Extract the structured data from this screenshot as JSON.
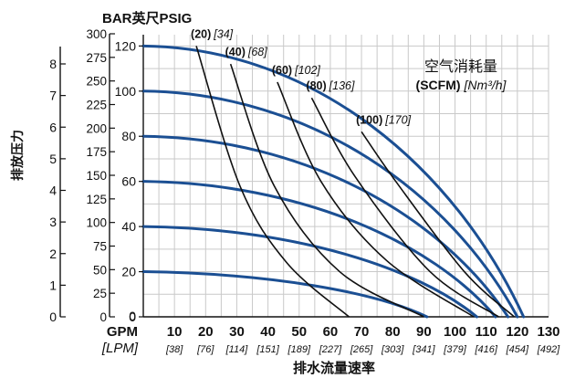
{
  "chart_data": {
    "type": "line",
    "top_axis_title": "BAR英尺PSIG",
    "ylabel": "排放压力",
    "xlabel": "排水流量速率",
    "x_unit_gpm": "GPM",
    "x_unit_lpm": "[LPM]",
    "legend_title_1": "空气消耗量",
    "legend_title_2_bold": "(SCFM)",
    "legend_title_2_ital": "[Nm³/h]",
    "xlim": [
      0,
      130
    ],
    "ylim_psig": [
      0,
      125
    ],
    "x_ticks_gpm": [
      10,
      20,
      30,
      40,
      50,
      60,
      70,
      80,
      90,
      100,
      110,
      120,
      130
    ],
    "x_ticks_lpm": [
      "[38]",
      "[76]",
      "[114]",
      "[151]",
      "[189]",
      "[227]",
      "[265]",
      "[303]",
      "[341]",
      "[379]",
      "[416]",
      "[454]",
      "[492]"
    ],
    "y_ticks_psig": [
      0,
      20,
      40,
      60,
      80,
      100,
      120
    ],
    "y_ticks_feet": [
      0,
      25,
      50,
      75,
      100,
      125,
      150,
      175,
      200,
      225,
      250,
      275,
      300
    ],
    "y_ticks_bar": [
      0,
      1,
      2,
      3,
      4,
      5,
      6,
      7,
      8
    ],
    "x_origin_label": "0",
    "performance_curves": [
      {
        "max_pressure": 120,
        "max_flow": 122
      },
      {
        "max_pressure": 100,
        "max_flow": 120
      },
      {
        "max_pressure": 80,
        "max_flow": 117
      },
      {
        "max_pressure": 60,
        "max_flow": 113
      },
      {
        "max_pressure": 40,
        "max_flow": 107
      },
      {
        "max_pressure": 20,
        "max_flow": 91
      }
    ],
    "air_curves": [
      {
        "label_bold": "(20)",
        "label_ital": "[34]",
        "points": [
          [
            17,
            120
          ],
          [
            31,
            58
          ],
          [
            46,
            24
          ],
          [
            66,
            0
          ]
        ]
      },
      {
        "label_bold": "(40)",
        "label_ital": "[68]",
        "points": [
          [
            28,
            112
          ],
          [
            42,
            58
          ],
          [
            63,
            20
          ],
          [
            90,
            0
          ]
        ]
      },
      {
        "label_bold": "(60)",
        "label_ital": "[102]",
        "points": [
          [
            43,
            104
          ],
          [
            57,
            60
          ],
          [
            78,
            25
          ],
          [
            106,
            0
          ]
        ]
      },
      {
        "label_bold": "(80)",
        "label_ital": "[136]",
        "points": [
          [
            54,
            97
          ],
          [
            68,
            62
          ],
          [
            92,
            20
          ],
          [
            114,
            0
          ]
        ]
      },
      {
        "label_bold": "(100)",
        "label_ital": "[170]",
        "points": [
          [
            70,
            82
          ],
          [
            81,
            60
          ],
          [
            103,
            20
          ],
          [
            119,
            0
          ]
        ]
      }
    ],
    "grid": true
  }
}
